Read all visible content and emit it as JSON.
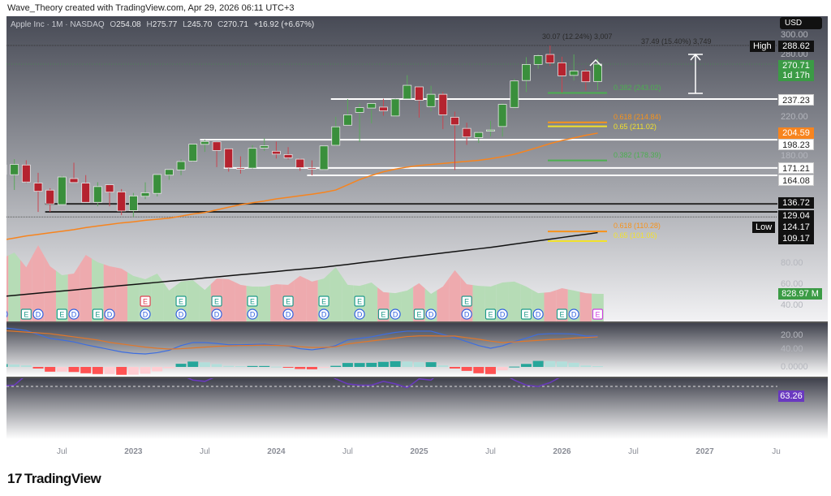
{
  "credit": "Wave_Theory created with TradingView.com, Apr 29, 2026 06:11 UTC+3",
  "legend": {
    "symbol": "Apple Inc · 1M · NASDAQ",
    "o_label": "O",
    "o": "254.08",
    "h_label": "H",
    "h": "275.77",
    "l_label": "L",
    "l": "245.70",
    "c_label": "C",
    "c": "270.71",
    "change": "+16.92 (+6.67%)"
  },
  "currency_button": "USD",
  "price_badges": {
    "high_tag": "High",
    "high": "288.62",
    "last": "270.71",
    "countdown": "1d 17h",
    "lvl_237": "237.23",
    "ma_orange": "204.59",
    "lvl_198": "198.23",
    "lvl_171": "171.21",
    "lvl_164": "164.08",
    "lvl_136": "136.72",
    "lvl_129": "129.04",
    "low_tag": "Low",
    "low": "124.17",
    "ma_black": "109.17",
    "volume": "828.97 M",
    "rsi": "63.26"
  },
  "price_ticks": [
    "300.00",
    "280.00",
    "220.00",
    "180.00",
    "80.00",
    "60.00",
    "40.00"
  ],
  "macd_ticks": [
    {
      "label": "20.00",
      "value": 20
    },
    {
      "label": "0.0000",
      "value": 0
    }
  ],
  "rsi_ticks": [
    {
      "label": "40.00",
      "value": 40
    }
  ],
  "time_axis": [
    {
      "label": "Jul",
      "date": "2022-07",
      "year": false
    },
    {
      "label": "2023",
      "date": "2023-01",
      "year": true
    },
    {
      "label": "Jul",
      "date": "2023-07",
      "year": false
    },
    {
      "label": "2024",
      "date": "2024-01",
      "year": true
    },
    {
      "label": "Jul",
      "date": "2024-07",
      "year": false
    },
    {
      "label": "2025",
      "date": "2025-01",
      "year": true
    },
    {
      "label": "Jul",
      "date": "2025-07",
      "year": false
    },
    {
      "label": "2026",
      "date": "2026-01",
      "year": true
    },
    {
      "label": "Jul",
      "date": "2026-07",
      "year": false
    },
    {
      "label": "2027",
      "date": "2027-01",
      "year": true
    },
    {
      "label": "Ju",
      "date": "2027-07",
      "year": false
    }
  ],
  "annotations": {
    "range_short": "30.07 (12.24%) 3,007",
    "range_long": "37.49 (15.40%) 3,749"
  },
  "logo": "TradingView",
  "colors": {
    "up": "#3a8f3c",
    "down": "#b5232f",
    "ma_fast": "#f7841e",
    "ma_slow": "#111111",
    "macd": "#3d6ee0",
    "signal": "#e0772a",
    "rsi": "#6a39c0",
    "fib_green": "#4caf50",
    "fib_orange": "#f7931a",
    "fib_yellow": "#f2e12b"
  },
  "chart_data": {
    "type": "candlestick",
    "symbol": "Apple Inc",
    "interval": "1M",
    "exchange": "NASDAQ",
    "y_scale": "linear",
    "ylim": [
      32,
      332
    ],
    "candles": [
      {
        "t": "2022-02",
        "o": 174.0,
        "h": 176.6,
        "l": 152.0,
        "c": 165.1,
        "v": 1900
      },
      {
        "t": "2022-03",
        "o": 164.7,
        "h": 179.6,
        "l": 150.1,
        "c": 174.6,
        "v": 2070
      },
      {
        "t": "2022-04",
        "o": 174.0,
        "h": 178.5,
        "l": 156.7,
        "c": 157.7,
        "v": 1630
      },
      {
        "t": "2022-05",
        "o": 156.7,
        "h": 166.5,
        "l": 129.0,
        "c": 148.8,
        "v": 2290
      },
      {
        "t": "2022-06",
        "o": 149.9,
        "h": 151.7,
        "l": 129.0,
        "c": 136.7,
        "v": 1660
      },
      {
        "t": "2022-07",
        "o": 136.0,
        "h": 163.6,
        "l": 135.7,
        "c": 162.5,
        "v": 1390
      },
      {
        "t": "2022-08",
        "o": 161.0,
        "h": 176.2,
        "l": 157.1,
        "c": 157.2,
        "v": 1440
      },
      {
        "t": "2022-09",
        "o": 156.6,
        "h": 164.3,
        "l": 138.0,
        "c": 138.2,
        "v": 2000
      },
      {
        "t": "2022-10",
        "o": 138.2,
        "h": 157.5,
        "l": 134.4,
        "c": 153.3,
        "v": 1780
      },
      {
        "t": "2022-11",
        "o": 155.1,
        "h": 155.5,
        "l": 134.4,
        "c": 148.0,
        "v": 1660
      },
      {
        "t": "2022-12",
        "o": 148.2,
        "h": 150.9,
        "l": 125.9,
        "c": 129.9,
        "v": 1590
      },
      {
        "t": "2023-01",
        "o": 130.3,
        "h": 147.2,
        "l": 124.17,
        "c": 144.3,
        "v": 1370
      },
      {
        "t": "2023-02",
        "o": 144.0,
        "h": 157.4,
        "l": 141.3,
        "c": 147.4,
        "v": 1270
      },
      {
        "t": "2023-03",
        "o": 146.8,
        "h": 165.0,
        "l": 143.9,
        "c": 164.9,
        "v": 1440
      },
      {
        "t": "2023-04",
        "o": 164.3,
        "h": 169.9,
        "l": 159.8,
        "c": 169.7,
        "v": 930
      },
      {
        "t": "2023-05",
        "o": 169.3,
        "h": 179.4,
        "l": 164.3,
        "c": 177.3,
        "v": 1200
      },
      {
        "t": "2023-06",
        "o": 177.7,
        "h": 194.5,
        "l": 176.9,
        "c": 194.0,
        "v": 1240
      },
      {
        "t": "2023-07",
        "o": 193.8,
        "h": 198.2,
        "l": 186.6,
        "c": 196.5,
        "v": 950
      },
      {
        "t": "2023-08",
        "o": 196.2,
        "h": 196.7,
        "l": 172.0,
        "c": 187.9,
        "v": 1290
      },
      {
        "t": "2023-09",
        "o": 189.5,
        "h": 190.0,
        "l": 167.6,
        "c": 171.2,
        "v": 1270
      },
      {
        "t": "2023-10",
        "o": 171.2,
        "h": 182.3,
        "l": 165.7,
        "c": 170.8,
        "v": 1100
      },
      {
        "t": "2023-11",
        "o": 171.0,
        "h": 192.9,
        "l": 170.1,
        "c": 190.0,
        "v": 1050
      },
      {
        "t": "2023-12",
        "o": 190.3,
        "h": 199.6,
        "l": 187.5,
        "c": 192.5,
        "v": 1050
      },
      {
        "t": "2024-01",
        "o": 187.2,
        "h": 196.4,
        "l": 180.2,
        "c": 184.4,
        "v": 1120
      },
      {
        "t": "2024-02",
        "o": 184.0,
        "h": 191.1,
        "l": 179.3,
        "c": 180.8,
        "v": 1100
      },
      {
        "t": "2024-03",
        "o": 179.6,
        "h": 180.5,
        "l": 168.5,
        "c": 171.5,
        "v": 1370
      },
      {
        "t": "2024-04",
        "o": 171.2,
        "h": 178.4,
        "l": 164.1,
        "c": 170.3,
        "v": 1200
      },
      {
        "t": "2024-05",
        "o": 169.6,
        "h": 193.0,
        "l": 169.1,
        "c": 192.3,
        "v": 1290
      },
      {
        "t": "2024-06",
        "o": 192.9,
        "h": 220.2,
        "l": 192.2,
        "c": 210.6,
        "v": 1630
      },
      {
        "t": "2024-07",
        "o": 212.1,
        "h": 237.2,
        "l": 211.9,
        "c": 222.1,
        "v": 1100
      },
      {
        "t": "2024-08",
        "o": 224.4,
        "h": 232.9,
        "l": 196.0,
        "c": 229.0,
        "v": 1070
      },
      {
        "t": "2024-09",
        "o": 228.6,
        "h": 233.1,
        "l": 213.9,
        "c": 233.0,
        "v": 1170
      },
      {
        "t": "2024-10",
        "o": 229.5,
        "h": 237.5,
        "l": 221.3,
        "c": 225.9,
        "v": 880
      },
      {
        "t": "2024-11",
        "o": 221.0,
        "h": 237.8,
        "l": 219.7,
        "c": 237.3,
        "v": 850
      },
      {
        "t": "2024-12",
        "o": 237.3,
        "h": 260.1,
        "l": 237.2,
        "c": 250.4,
        "v": 930
      },
      {
        "t": "2025-01",
        "o": 248.9,
        "h": 249.1,
        "l": 219.4,
        "c": 236.0,
        "v": 1150
      },
      {
        "t": "2025-02",
        "o": 230.0,
        "h": 250.0,
        "l": 225.7,
        "c": 241.8,
        "v": 830
      },
      {
        "t": "2025-03",
        "o": 241.8,
        "h": 244.0,
        "l": 208.4,
        "c": 222.1,
        "v": 1050
      },
      {
        "t": "2025-04",
        "o": 219.8,
        "h": 225.2,
        "l": 169.2,
        "c": 212.5,
        "v": 1540
      },
      {
        "t": "2025-05",
        "o": 209.1,
        "h": 214.6,
        "l": 193.3,
        "c": 200.9,
        "v": 1120
      },
      {
        "t": "2025-06",
        "o": 200.3,
        "h": 206.2,
        "l": 195.1,
        "c": 205.2,
        "v": 1070
      },
      {
        "t": "2025-07",
        "o": 206.7,
        "h": 216.2,
        "l": 201.5,
        "c": 207.6,
        "v": 1050
      },
      {
        "t": "2025-08",
        "o": 210.9,
        "h": 233.4,
        "l": 201.3,
        "c": 232.1,
        "v": 1170
      },
      {
        "t": "2025-09",
        "o": 229.2,
        "h": 256.6,
        "l": 227.0,
        "c": 254.6,
        "v": 1200
      },
      {
        "t": "2025-10",
        "o": 255.0,
        "h": 277.3,
        "l": 244.0,
        "c": 270.4,
        "v": 1050
      },
      {
        "t": "2025-11",
        "o": 270.4,
        "h": 280.0,
        "l": 266.3,
        "c": 278.9,
        "v": 850
      },
      {
        "t": "2025-12",
        "o": 280.0,
        "h": 288.62,
        "l": 269.0,
        "c": 271.9,
        "v": 880
      },
      {
        "t": "2026-01",
        "o": 272.0,
        "h": 277.8,
        "l": 243.4,
        "c": 259.5,
        "v": 1000
      },
      {
        "t": "2026-02",
        "o": 259.9,
        "h": 280.0,
        "l": 255.0,
        "c": 264.2,
        "v": 930
      },
      {
        "t": "2026-03",
        "o": 264.0,
        "h": 266.0,
        "l": 245.5,
        "c": 253.8,
        "v": 850
      },
      {
        "t": "2026-04",
        "o": 254.08,
        "h": 275.77,
        "l": 245.7,
        "c": 270.71,
        "v": 828.97
      }
    ],
    "ma_orange": [
      102,
      104,
      106,
      107.5,
      109,
      110.5,
      112,
      114,
      115.5,
      117,
      118.5,
      119.5,
      121,
      122,
      123,
      125,
      127,
      128.5,
      131,
      133.5,
      136,
      137.8,
      139.5,
      141.5,
      143,
      144.5,
      146,
      147.7,
      150,
      155,
      160,
      164,
      167.5,
      170,
      172,
      173.5,
      174.5,
      175.5,
      176.5,
      177.5,
      178.5,
      180,
      182,
      184.3,
      187.5,
      191,
      194.5,
      197.5,
      200,
      202.5,
      204.59
    ],
    "ma_black": [
      48,
      49,
      50.1,
      51.1,
      52.2,
      53.2,
      54.2,
      55.3,
      56.3,
      57.4,
      58.4,
      59.4,
      60.5,
      61.5,
      62.6,
      63.6,
      64.6,
      65.7,
      66.7,
      67.8,
      68.8,
      69.8,
      70.9,
      71.9,
      73,
      74,
      75,
      76,
      77.4,
      78.7,
      80.1,
      81.5,
      82.8,
      84.2,
      85.6,
      86.9,
      88.3,
      89.7,
      91,
      92.4,
      93.7,
      95,
      96.6,
      98.2,
      99.8,
      101.3,
      102.9,
      104.5,
      106.1,
      107.6,
      109.17
    ],
    "volume_unit": "M",
    "events": [
      {
        "t": "2022-02",
        "types": [
          "D"
        ]
      },
      {
        "t": "2022-04",
        "types": [
          "E"
        ]
      },
      {
        "t": "2022-05",
        "types": [
          "D"
        ]
      },
      {
        "t": "2022-07",
        "types": [
          "E"
        ]
      },
      {
        "t": "2022-08",
        "types": [
          "D"
        ]
      },
      {
        "t": "2022-10",
        "types": [
          "E"
        ]
      },
      {
        "t": "2022-11",
        "types": [
          "D"
        ]
      },
      {
        "t": "2023-02",
        "types": [
          "E-miss",
          "D"
        ]
      },
      {
        "t": "2023-05",
        "types": [
          "E",
          "D"
        ]
      },
      {
        "t": "2023-08",
        "types": [
          "E",
          "D"
        ]
      },
      {
        "t": "2023-11",
        "types": [
          "E",
          "D"
        ]
      },
      {
        "t": "2024-02",
        "types": [
          "E",
          "D"
        ]
      },
      {
        "t": "2024-05",
        "types": [
          "E",
          "D"
        ]
      },
      {
        "t": "2024-08",
        "types": [
          "E",
          "D"
        ]
      },
      {
        "t": "2024-10",
        "types": [
          "E"
        ]
      },
      {
        "t": "2024-11",
        "types": [
          "D"
        ]
      },
      {
        "t": "2025-01",
        "types": [
          "E"
        ]
      },
      {
        "t": "2025-02",
        "types": [
          "D"
        ]
      },
      {
        "t": "2025-05",
        "types": [
          "E",
          "D"
        ]
      },
      {
        "t": "2025-07",
        "types": [
          "E"
        ]
      },
      {
        "t": "2025-08",
        "types": [
          "D"
        ]
      },
      {
        "t": "2025-10",
        "types": [
          "E"
        ]
      },
      {
        "t": "2025-11",
        "types": [
          "D"
        ]
      },
      {
        "t": "2026-01",
        "types": [
          "E"
        ]
      },
      {
        "t": "2026-02",
        "types": [
          "D"
        ]
      },
      {
        "t": "2026-04",
        "types": [
          "E-upcoming"
        ]
      }
    ],
    "horizontal_levels": [
      {
        "price": 237.23,
        "color": "#ffffff",
        "from": "2024-06"
      },
      {
        "price": 198.23,
        "color": "#ffffff",
        "from": "2023-07"
      },
      {
        "price": 171.21,
        "color": "#ffffff",
        "from": "2023-09"
      },
      {
        "price": 164.08,
        "color": "#ffffff",
        "from": "2024-04"
      },
      {
        "price": 136.72,
        "color": "#2b2b2b",
        "from": "2022-06"
      },
      {
        "price": 129.04,
        "color": "#2b2b2b",
        "from": "2022-06"
      }
    ],
    "fib_levels": [
      {
        "label": "0.382 (243.02)",
        "price": 243.02,
        "color": "#4caf50"
      },
      {
        "label": "0.618 (214.84)",
        "price": 214.84,
        "color": "#f7931a"
      },
      {
        "label": "0.65 (211.02)",
        "price": 211.02,
        "color": "#f2e12b"
      },
      {
        "label": "0.382 (178.39)",
        "price": 178.39,
        "color": "#4caf50"
      },
      {
        "label": "0.618 (110.28)",
        "price": 110.28,
        "color": "#f7931a"
      },
      {
        "label": "0.65 (101.05)",
        "price": 101.05,
        "color": "#f2e12b"
      }
    ],
    "macd": {
      "macd": [
        24.8,
        24,
        23,
        20.5,
        18,
        17,
        15.8,
        14,
        12.5,
        11,
        9.5,
        8.6,
        8.2,
        9,
        10.5,
        13.5,
        15.4,
        15.4,
        14.8,
        14,
        14,
        14.2,
        14.4,
        13.8,
        13.2,
        11.5,
        10.8,
        11.8,
        13.5,
        17,
        18,
        19,
        20.5,
        21.8,
        22.6,
        22.6,
        22.6,
        20.5,
        18.5,
        16,
        13.5,
        11.8,
        13.3,
        16,
        18.2,
        20.6,
        21,
        21,
        20.8,
        19.5,
        19.5
      ],
      "signal": [
        23,
        22.5,
        22,
        21.5,
        21,
        20,
        19,
        18,
        17,
        15.5,
        14.5,
        13.5,
        12.5,
        11.8,
        11.3,
        11.5,
        12,
        12.5,
        13,
        13.3,
        13.5,
        13.6,
        13.8,
        13.6,
        13.3,
        12.8,
        12.3,
        12.3,
        12.8,
        14.5,
        15.5,
        16.4,
        17.3,
        18.2,
        19.2,
        19.6,
        19.6,
        19.5,
        19.5,
        18.5,
        17.5,
        16.3,
        15.4,
        15.8,
        16.3,
        16.8,
        17.3,
        17.6,
        18.2,
        18.6,
        19
      ]
    },
    "rsi": {
      "values": [
        69.5,
        69,
        61,
        57,
        51,
        60,
        58,
        50,
        55,
        53,
        47,
        52,
        53,
        58,
        59,
        61,
        65,
        66,
        62,
        55,
        55,
        61,
        61,
        58,
        56,
        52,
        52,
        59,
        64,
        68,
        69,
        69,
        66,
        68,
        71,
        64,
        65,
        57,
        53,
        49,
        51,
        52,
        60,
        65,
        69,
        70,
        67,
        62,
        63,
        58,
        63.26
      ],
      "upper": 70,
      "lower": 30
    }
  }
}
